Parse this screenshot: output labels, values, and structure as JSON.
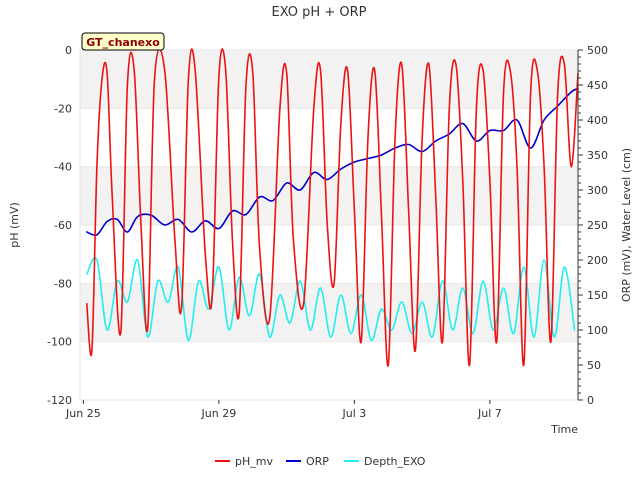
{
  "chart_data": {
    "type": "line",
    "title": "EXO pH + ORP",
    "xlabel": "Time",
    "ylabel": "pH (mV)",
    "y2label": "ORP (mV), Water Level (cm)",
    "site_label": "GT_chanexo",
    "x_ticks": [
      "Jun 25",
      "Jun 29",
      "Jul 3",
      "Jul 7"
    ],
    "x_tick_days": [
      0,
      4,
      8,
      12
    ],
    "xlim_days": [
      -0.1,
      14.6
    ],
    "ylim": [
      -120,
      0
    ],
    "y_ticks": [
      0,
      -20,
      -40,
      -60,
      -80,
      -100,
      -120
    ],
    "y2lim": [
      0,
      500
    ],
    "y2_ticks": [
      0,
      50,
      100,
      150,
      200,
      250,
      300,
      350,
      400,
      450,
      500
    ],
    "legend_position": "bottom",
    "bands": [
      [
        -20,
        0
      ],
      [
        -60,
        -40
      ],
      [
        -100,
        -80
      ]
    ],
    "series": [
      {
        "name": "pH_mv",
        "axis": "left",
        "color": "#ee1111",
        "x": [
          0.1,
          0.25,
          0.4,
          0.55,
          0.7,
          0.85,
          1.1,
          1.3,
          1.5,
          1.7,
          1.9,
          2.1,
          2.4,
          2.7,
          2.9,
          3.1,
          3.3,
          3.6,
          3.8,
          4.0,
          4.2,
          4.4,
          4.6,
          4.8,
          5.0,
          5.2,
          5.5,
          5.8,
          6.0,
          6.2,
          6.5,
          6.8,
          7.0,
          7.2,
          7.4,
          7.6,
          7.8,
          8.0,
          8.2,
          8.4,
          8.6,
          8.8,
          9.0,
          9.2,
          9.4,
          9.6,
          9.8,
          10.0,
          10.2,
          10.4,
          10.6,
          10.8,
          11.0,
          11.2,
          11.4,
          11.6,
          11.8,
          12.0,
          12.2,
          12.4,
          12.6,
          12.8,
          13.0,
          13.2,
          13.4,
          13.6,
          13.8,
          14.0,
          14.2,
          14.4,
          14.6
        ],
        "y": [
          -87,
          -103,
          -40,
          -10,
          -8,
          -50,
          -97,
          -12,
          -7,
          -60,
          -95,
          -10,
          -7,
          -65,
          -88,
          -10,
          -7,
          -70,
          -85,
          -9,
          -7,
          -65,
          -90,
          -12,
          -8,
          -68,
          -92,
          -20,
          -8,
          -65,
          -87,
          -20,
          -7,
          -60,
          -80,
          -25,
          -7,
          -55,
          -100,
          -30,
          -7,
          -57,
          -108,
          -30,
          -5,
          -55,
          -103,
          -30,
          -5,
          -50,
          -100,
          -20,
          -5,
          -45,
          -108,
          -20,
          -7,
          -45,
          -100,
          -15,
          -7,
          -40,
          -108,
          -15,
          -7,
          -40,
          -100,
          -15,
          -5,
          -40,
          -8
        ]
      },
      {
        "name": "ORP",
        "axis": "right",
        "color": "#0000cc",
        "x": [
          0.1,
          0.4,
          0.7,
          1.0,
          1.3,
          1.6,
          2.0,
          2.4,
          2.8,
          3.2,
          3.6,
          4.0,
          4.4,
          4.8,
          5.2,
          5.6,
          6.0,
          6.4,
          6.8,
          7.2,
          7.6,
          8.0,
          8.4,
          8.8,
          9.2,
          9.6,
          10.0,
          10.4,
          10.8,
          11.2,
          11.6,
          12.0,
          12.4,
          12.8,
          13.2,
          13.6,
          14.0,
          14.4,
          14.6
        ],
        "y": [
          240,
          236,
          255,
          258,
          240,
          262,
          264,
          250,
          258,
          240,
          256,
          245,
          270,
          265,
          290,
          285,
          310,
          300,
          325,
          315,
          330,
          340,
          345,
          350,
          360,
          365,
          355,
          370,
          380,
          395,
          370,
          385,
          385,
          400,
          360,
          400,
          420,
          440,
          445
        ]
      },
      {
        "name": "Depth_EXO",
        "axis": "right",
        "color": "#22eeee",
        "x": [
          0.1,
          0.4,
          0.7,
          1.0,
          1.3,
          1.6,
          1.9,
          2.2,
          2.5,
          2.8,
          3.1,
          3.4,
          3.7,
          4.0,
          4.3,
          4.6,
          4.9,
          5.2,
          5.5,
          5.8,
          6.1,
          6.4,
          6.7,
          7.0,
          7.3,
          7.6,
          7.9,
          8.2,
          8.5,
          8.8,
          9.1,
          9.4,
          9.7,
          10.0,
          10.3,
          10.6,
          10.9,
          11.2,
          11.5,
          11.8,
          12.1,
          12.4,
          12.7,
          13.0,
          13.3,
          13.6,
          13.9,
          14.2,
          14.5
        ],
        "y": [
          180,
          200,
          100,
          170,
          140,
          200,
          90,
          170,
          140,
          190,
          85,
          170,
          130,
          190,
          100,
          175,
          120,
          180,
          90,
          150,
          110,
          170,
          100,
          160,
          90,
          150,
          95,
          150,
          85,
          130,
          100,
          140,
          95,
          140,
          90,
          170,
          100,
          160,
          95,
          170,
          100,
          160,
          95,
          190,
          90,
          200,
          90,
          190,
          100
        ]
      }
    ]
  }
}
